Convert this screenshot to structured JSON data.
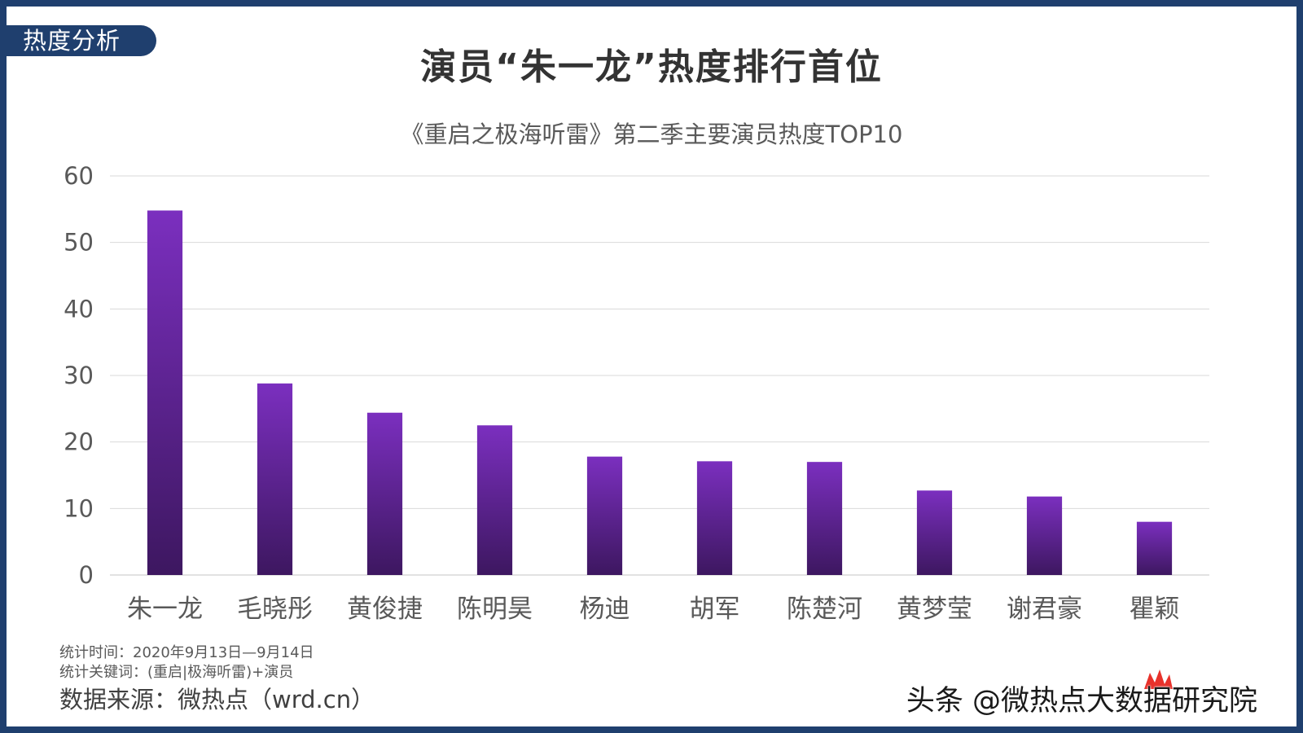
{
  "header": {
    "section_tag": "热度分析",
    "title": "演员“朱一龙”热度排行首位"
  },
  "chart_data": {
    "type": "bar",
    "title": "《重启之极海听雷》第二季主要演员热度TOP10",
    "categories": [
      "朱一龙",
      "毛晓彤",
      "黄俊捷",
      "陈明昊",
      "杨迪",
      "胡军",
      "陈楚河",
      "黄梦莹",
      "谢君豪",
      "瞿颖"
    ],
    "values": [
      54.8,
      28.8,
      24.4,
      22.5,
      17.8,
      17.1,
      17.0,
      12.7,
      11.8,
      8.0
    ],
    "ylim": [
      0,
      60
    ],
    "yticks": [
      0,
      10,
      20,
      30,
      40,
      50,
      60
    ],
    "grid": true,
    "colors": {
      "bar_top": "#7b2fbf",
      "bar_bottom": "#3d1760",
      "grid": "#d9d9d9",
      "tick_text": "#595959"
    }
  },
  "footer": {
    "stat_time": "统计时间：2020年9月13日—9月14日",
    "stat_keywords": "统计关键词：(重启|极海听雷)+演员",
    "source": "数据来源：微热点（wrd.cn）"
  },
  "watermark": {
    "text": "头条 @微热点大数据研究院",
    "logo_icon": "flame-logo-icon"
  }
}
